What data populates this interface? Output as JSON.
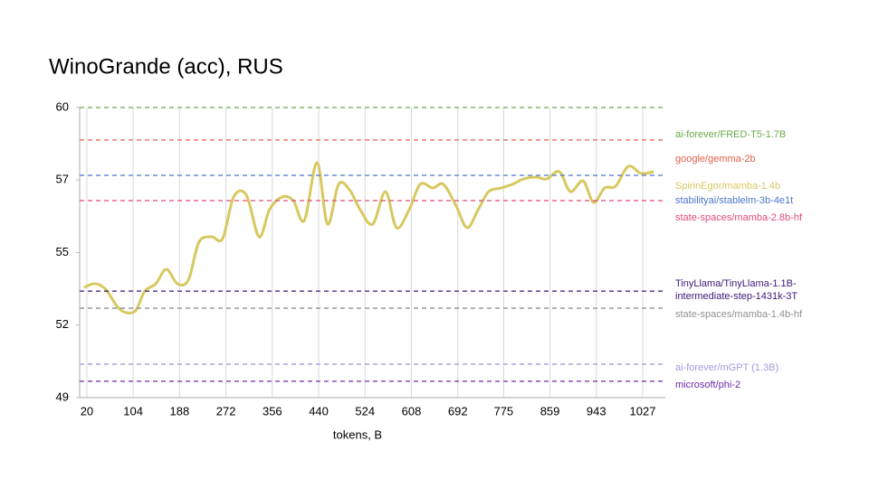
{
  "chart_data": {
    "type": "line",
    "title": "WinoGrande (acc), RUS",
    "x_label": "tokens, B",
    "xlim": [
      7,
      1068
    ],
    "xticks": [
      20,
      104,
      188,
      272,
      356,
      440,
      524,
      608,
      692,
      775,
      859,
      943,
      1027
    ],
    "ylim": [
      49,
      60
    ],
    "yticks": [
      49,
      {
        "value": 51.75,
        "label": "52"
      },
      {
        "value": 54.5,
        "label": "55"
      },
      {
        "value": 57.25,
        "label": "57"
      },
      60
    ],
    "grid": true,
    "series": [
      {
        "name": "ai-forever/FRED-T5-1.7B",
        "color": "#6aaa4a",
        "value": 60.0
      },
      {
        "name": "google/gemma-2b",
        "color": "#e0604a",
        "value": 58.77
      },
      {
        "name": "SpirinEgor/mamba-1.4b",
        "color": "#d8c860",
        "x": [
          15,
          35,
          54,
          76,
          92,
          109,
          125,
          145,
          164,
          184,
          204,
          223,
          246,
          266,
          286,
          309,
          332,
          351,
          374,
          394,
          414,
          437,
          456,
          476,
          496,
          515,
          538,
          561,
          581,
          604,
          624,
          647,
          666,
          689,
          709,
          729,
          748,
          771,
          791,
          811,
          834,
          853,
          876,
          896,
          919,
          938,
          958,
          978,
          1001,
          1024,
          1047
        ],
        "values": [
          53.18,
          53.32,
          53.11,
          52.43,
          52.22,
          52.32,
          53.04,
          53.32,
          53.87,
          53.32,
          53.46,
          54.89,
          55.1,
          55.03,
          56.61,
          56.68,
          55.1,
          56.13,
          56.61,
          56.47,
          55.72,
          57.91,
          55.58,
          57.09,
          56.88,
          56.13,
          55.58,
          56.81,
          55.44,
          56.13,
          57.09,
          56.95,
          57.09,
          56.27,
          55.44,
          56.13,
          56.81,
          56.95,
          57.09,
          57.29,
          57.36,
          57.29,
          57.57,
          56.81,
          57.22,
          56.4,
          56.95,
          57.02,
          57.77,
          57.5,
          57.57
        ]
      },
      {
        "name": "stabilityai/stablelm-3b-4e1t",
        "color": "#4a78c8",
        "value": 57.43
      },
      {
        "name": "state-spaces/mamba-2.8b-hf",
        "color": "#e04a78",
        "value": 56.47
      },
      {
        "name": "TinyLlama/TinyLlama-1.1B-intermediate-step-1431k-3T",
        "color": "#3a1a78",
        "value": 53.04
      },
      {
        "name": "state-spaces/mamba-1.4b-hf",
        "color": "#909090",
        "value": 52.39
      },
      {
        "name": "ai-forever/mGPT (1.3B)",
        "color": "#a898e0",
        "value": 50.27
      },
      {
        "name": "microsoft/phi-2",
        "color": "#6a2aa8",
        "value": 49.62
      }
    ]
  }
}
